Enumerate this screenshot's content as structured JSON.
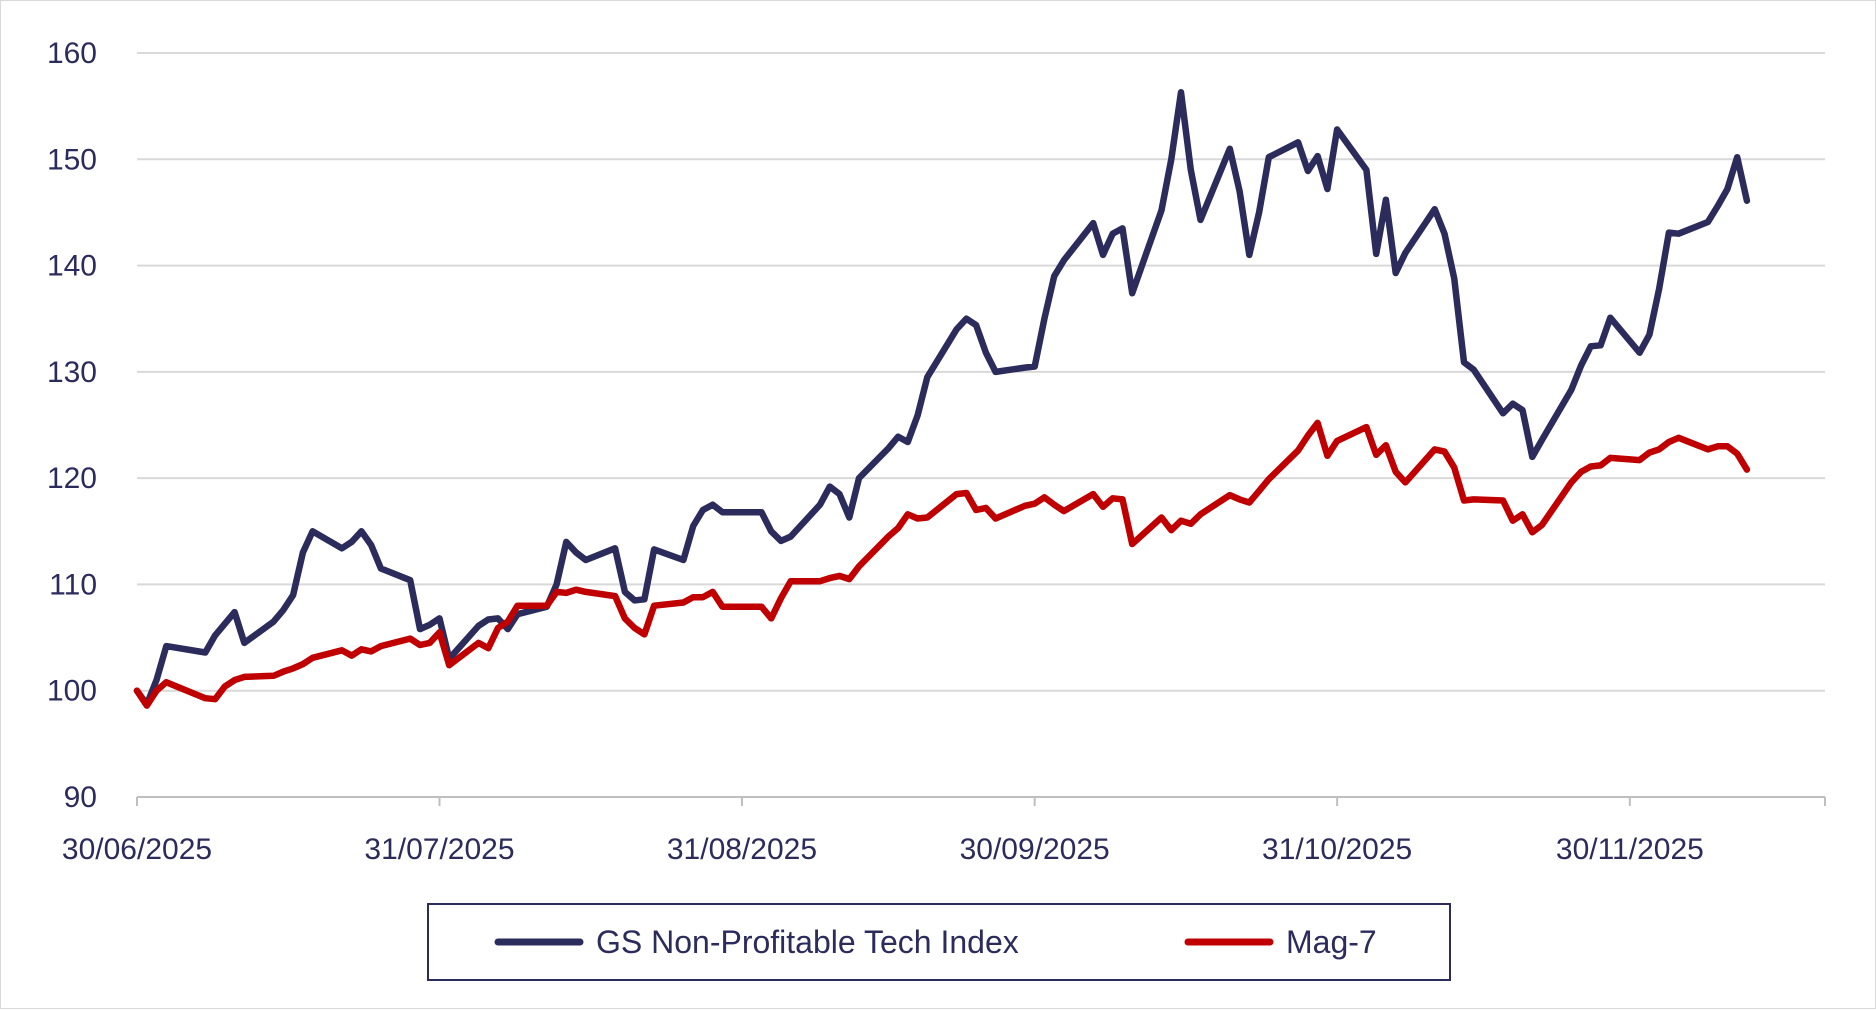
{
  "chart_data": {
    "type": "line",
    "title": "",
    "xlabel": "",
    "ylabel": "",
    "ylim": [
      90,
      160
    ],
    "yticks": [
      90,
      100,
      110,
      120,
      130,
      140,
      150,
      160
    ],
    "xlim": [
      "2025-06-30",
      "2025-12-20"
    ],
    "xticks": [
      "30/06/2025",
      "31/07/2025",
      "31/08/2025",
      "30/09/2025",
      "31/10/2025",
      "30/11/2025"
    ],
    "xtick_dates": [
      "2025-06-30",
      "2025-07-31",
      "2025-08-31",
      "2025-09-30",
      "2025-10-31",
      "2025-11-30"
    ],
    "grid": "horizontal",
    "legend_position": "bottom",
    "colors": {
      "gs": "#2b2b5c",
      "mag7": "#c00000",
      "grid": "#d9d9d9",
      "axis": "#bfbfbf"
    },
    "series": [
      {
        "name": "GS Non-Profitable Tech Index",
        "color": "#2b2b5c",
        "points": [
          [
            "2025-06-30",
            100
          ],
          [
            "2025-07-01",
            98.7
          ],
          [
            "2025-07-02",
            101
          ],
          [
            "2025-07-03",
            104.2
          ],
          [
            "2025-07-07",
            103.6
          ],
          [
            "2025-07-08",
            105.2
          ],
          [
            "2025-07-09",
            106.3
          ],
          [
            "2025-07-10",
            107.4
          ],
          [
            "2025-07-11",
            104.5
          ],
          [
            "2025-07-14",
            106.5
          ],
          [
            "2025-07-15",
            107.6
          ],
          [
            "2025-07-16",
            109
          ],
          [
            "2025-07-17",
            113
          ],
          [
            "2025-07-18",
            115
          ],
          [
            "2025-07-21",
            113.4
          ],
          [
            "2025-07-22",
            114
          ],
          [
            "2025-07-23",
            115
          ],
          [
            "2025-07-24",
            113.7
          ],
          [
            "2025-07-25",
            111.5
          ],
          [
            "2025-07-28",
            110.4
          ],
          [
            "2025-07-29",
            105.8
          ],
          [
            "2025-07-30",
            106.2
          ],
          [
            "2025-07-31",
            106.8
          ],
          [
            "2025-08-01",
            103
          ],
          [
            "2025-08-04",
            106.1
          ],
          [
            "2025-08-05",
            106.7
          ],
          [
            "2025-08-06",
            106.8
          ],
          [
            "2025-08-07",
            105.8
          ],
          [
            "2025-08-08",
            107.2
          ],
          [
            "2025-08-11",
            107.9
          ],
          [
            "2025-08-12",
            110
          ],
          [
            "2025-08-13",
            114
          ],
          [
            "2025-08-14",
            113
          ],
          [
            "2025-08-15",
            112.3
          ],
          [
            "2025-08-18",
            113.4
          ],
          [
            "2025-08-19",
            109.3
          ],
          [
            "2025-08-20",
            108.5
          ],
          [
            "2025-08-21",
            108.6
          ],
          [
            "2025-08-22",
            113.3
          ],
          [
            "2025-08-25",
            112.3
          ],
          [
            "2025-08-26",
            115.5
          ],
          [
            "2025-08-27",
            117
          ],
          [
            "2025-08-28",
            117.5
          ],
          [
            "2025-08-29",
            116.8
          ],
          [
            "2025-09-02",
            116.8
          ],
          [
            "2025-09-03",
            115
          ],
          [
            "2025-09-04",
            114.1
          ],
          [
            "2025-09-05",
            114.5
          ],
          [
            "2025-09-08",
            117.5
          ],
          [
            "2025-09-09",
            119.2
          ],
          [
            "2025-09-10",
            118.5
          ],
          [
            "2025-09-11",
            116.3
          ],
          [
            "2025-09-12",
            120
          ],
          [
            "2025-09-15",
            122.8
          ],
          [
            "2025-09-16",
            123.9
          ],
          [
            "2025-09-17",
            123.4
          ],
          [
            "2025-09-18",
            125.9
          ],
          [
            "2025-09-19",
            129.5
          ],
          [
            "2025-09-22",
            134
          ],
          [
            "2025-09-23",
            135
          ],
          [
            "2025-09-24",
            134.4
          ],
          [
            "2025-09-25",
            131.8
          ],
          [
            "2025-09-26",
            130
          ],
          [
            "2025-09-29",
            130.4
          ],
          [
            "2025-09-30",
            130.5
          ],
          [
            "2025-10-01",
            135
          ],
          [
            "2025-10-02",
            139
          ],
          [
            "2025-10-03",
            140.5
          ],
          [
            "2025-10-06",
            144
          ],
          [
            "2025-10-07",
            141
          ],
          [
            "2025-10-08",
            143
          ],
          [
            "2025-10-09",
            143.5
          ],
          [
            "2025-10-10",
            137.4
          ],
          [
            "2025-10-13",
            145.2
          ],
          [
            "2025-10-14",
            150
          ],
          [
            "2025-10-15",
            156.3
          ],
          [
            "2025-10-16",
            149
          ],
          [
            "2025-10-17",
            144.3
          ],
          [
            "2025-10-20",
            151
          ],
          [
            "2025-10-21",
            147
          ],
          [
            "2025-10-22",
            141
          ],
          [
            "2025-10-23",
            145
          ],
          [
            "2025-10-24",
            150.2
          ],
          [
            "2025-10-27",
            151.6
          ],
          [
            "2025-10-28",
            148.9
          ],
          [
            "2025-10-29",
            150.3
          ],
          [
            "2025-10-30",
            147.2
          ],
          [
            "2025-10-31",
            152.8
          ],
          [
            "2025-11-03",
            149
          ],
          [
            "2025-11-04",
            141.1
          ],
          [
            "2025-11-05",
            146.2
          ],
          [
            "2025-11-06",
            139.3
          ],
          [
            "2025-11-07",
            141.2
          ],
          [
            "2025-11-10",
            145.3
          ],
          [
            "2025-11-11",
            143
          ],
          [
            "2025-11-12",
            138.8
          ],
          [
            "2025-11-13",
            130.9
          ],
          [
            "2025-11-14",
            130.2
          ],
          [
            "2025-11-17",
            126.1
          ],
          [
            "2025-11-18",
            127
          ],
          [
            "2025-11-19",
            126.4
          ],
          [
            "2025-11-20",
            122
          ],
          [
            "2025-11-21",
            123.6
          ],
          [
            "2025-11-24",
            128.3
          ],
          [
            "2025-11-25",
            130.6
          ],
          [
            "2025-11-26",
            132.4
          ],
          [
            "2025-11-27",
            132.5
          ],
          [
            "2025-11-28",
            135.1
          ],
          [
            "2025-12-01",
            131.8
          ],
          [
            "2025-12-02",
            133.5
          ],
          [
            "2025-12-03",
            137.8
          ],
          [
            "2025-12-04",
            143.1
          ],
          [
            "2025-12-05",
            143
          ],
          [
            "2025-12-08",
            144.1
          ],
          [
            "2025-12-09",
            145.6
          ],
          [
            "2025-12-10",
            147.2
          ],
          [
            "2025-12-11",
            150.2
          ],
          [
            "2025-12-12",
            146.1
          ]
        ]
      },
      {
        "name": "Mag-7",
        "color": "#c00000",
        "points": [
          [
            "2025-06-30",
            100
          ],
          [
            "2025-07-01",
            98.6
          ],
          [
            "2025-07-02",
            100
          ],
          [
            "2025-07-03",
            100.8
          ],
          [
            "2025-07-07",
            99.3
          ],
          [
            "2025-07-08",
            99.2
          ],
          [
            "2025-07-09",
            100.4
          ],
          [
            "2025-07-10",
            101
          ],
          [
            "2025-07-11",
            101.3
          ],
          [
            "2025-07-14",
            101.4
          ],
          [
            "2025-07-15",
            101.8
          ],
          [
            "2025-07-16",
            102.1
          ],
          [
            "2025-07-17",
            102.5
          ],
          [
            "2025-07-18",
            103.1
          ],
          [
            "2025-07-21",
            103.8
          ],
          [
            "2025-07-22",
            103.3
          ],
          [
            "2025-07-23",
            103.9
          ],
          [
            "2025-07-24",
            103.7
          ],
          [
            "2025-07-25",
            104.2
          ],
          [
            "2025-07-28",
            104.9
          ],
          [
            "2025-07-29",
            104.3
          ],
          [
            "2025-07-30",
            104.5
          ],
          [
            "2025-07-31",
            105.5
          ],
          [
            "2025-08-01",
            102.4
          ],
          [
            "2025-08-04",
            104.5
          ],
          [
            "2025-08-05",
            104
          ],
          [
            "2025-08-06",
            105.9
          ],
          [
            "2025-08-07",
            106.5
          ],
          [
            "2025-08-08",
            108
          ],
          [
            "2025-08-11",
            108
          ],
          [
            "2025-08-12",
            109.3
          ],
          [
            "2025-08-13",
            109.2
          ],
          [
            "2025-08-14",
            109.5
          ],
          [
            "2025-08-15",
            109.3
          ],
          [
            "2025-08-18",
            108.9
          ],
          [
            "2025-08-19",
            106.8
          ],
          [
            "2025-08-20",
            105.9
          ],
          [
            "2025-08-21",
            105.3
          ],
          [
            "2025-08-22",
            108
          ],
          [
            "2025-08-25",
            108.3
          ],
          [
            "2025-08-26",
            108.8
          ],
          [
            "2025-08-27",
            108.8
          ],
          [
            "2025-08-28",
            109.3
          ],
          [
            "2025-08-29",
            107.9
          ],
          [
            "2025-09-02",
            107.9
          ],
          [
            "2025-09-03",
            106.8
          ],
          [
            "2025-09-04",
            108.7
          ],
          [
            "2025-09-05",
            110.3
          ],
          [
            "2025-09-08",
            110.3
          ],
          [
            "2025-09-09",
            110.6
          ],
          [
            "2025-09-10",
            110.8
          ],
          [
            "2025-09-11",
            110.5
          ],
          [
            "2025-09-12",
            111.7
          ],
          [
            "2025-09-15",
            114.5
          ],
          [
            "2025-09-16",
            115.3
          ],
          [
            "2025-09-17",
            116.6
          ],
          [
            "2025-09-18",
            116.2
          ],
          [
            "2025-09-19",
            116.3
          ],
          [
            "2025-09-22",
            118.5
          ],
          [
            "2025-09-23",
            118.6
          ],
          [
            "2025-09-24",
            117
          ],
          [
            "2025-09-25",
            117.2
          ],
          [
            "2025-09-26",
            116.2
          ],
          [
            "2025-09-29",
            117.4
          ],
          [
            "2025-09-30",
            117.6
          ],
          [
            "2025-10-01",
            118.2
          ],
          [
            "2025-10-02",
            117.5
          ],
          [
            "2025-10-03",
            116.9
          ],
          [
            "2025-10-06",
            118.5
          ],
          [
            "2025-10-07",
            117.3
          ],
          [
            "2025-10-08",
            118.1
          ],
          [
            "2025-10-09",
            118
          ],
          [
            "2025-10-10",
            113.8
          ],
          [
            "2025-10-13",
            116.3
          ],
          [
            "2025-10-14",
            115.1
          ],
          [
            "2025-10-15",
            116
          ],
          [
            "2025-10-16",
            115.7
          ],
          [
            "2025-10-17",
            116.6
          ],
          [
            "2025-10-20",
            118.4
          ],
          [
            "2025-10-21",
            118
          ],
          [
            "2025-10-22",
            117.7
          ],
          [
            "2025-10-23",
            118.8
          ],
          [
            "2025-10-24",
            119.9
          ],
          [
            "2025-10-27",
            122.6
          ],
          [
            "2025-10-28",
            124
          ],
          [
            "2025-10-29",
            125.2
          ],
          [
            "2025-10-30",
            122.1
          ],
          [
            "2025-10-31",
            123.5
          ],
          [
            "2025-11-03",
            124.8
          ],
          [
            "2025-11-04",
            122.2
          ],
          [
            "2025-11-05",
            123.1
          ],
          [
            "2025-11-06",
            120.6
          ],
          [
            "2025-11-07",
            119.6
          ],
          [
            "2025-11-10",
            122.7
          ],
          [
            "2025-11-11",
            122.5
          ],
          [
            "2025-11-12",
            121
          ],
          [
            "2025-11-13",
            117.9
          ],
          [
            "2025-11-14",
            118
          ],
          [
            "2025-11-17",
            117.9
          ],
          [
            "2025-11-18",
            116
          ],
          [
            "2025-11-19",
            116.6
          ],
          [
            "2025-11-20",
            114.9
          ],
          [
            "2025-11-21",
            115.6
          ],
          [
            "2025-11-24",
            119.6
          ],
          [
            "2025-11-25",
            120.6
          ],
          [
            "2025-11-26",
            121.1
          ],
          [
            "2025-11-27",
            121.2
          ],
          [
            "2025-11-28",
            121.9
          ],
          [
            "2025-12-01",
            121.7
          ],
          [
            "2025-12-02",
            122.4
          ],
          [
            "2025-12-03",
            122.7
          ],
          [
            "2025-12-04",
            123.4
          ],
          [
            "2025-12-05",
            123.8
          ],
          [
            "2025-12-08",
            122.7
          ],
          [
            "2025-12-09",
            123
          ],
          [
            "2025-12-10",
            123
          ],
          [
            "2025-12-11",
            122.3
          ],
          [
            "2025-12-12",
            120.8
          ]
        ]
      }
    ]
  }
}
